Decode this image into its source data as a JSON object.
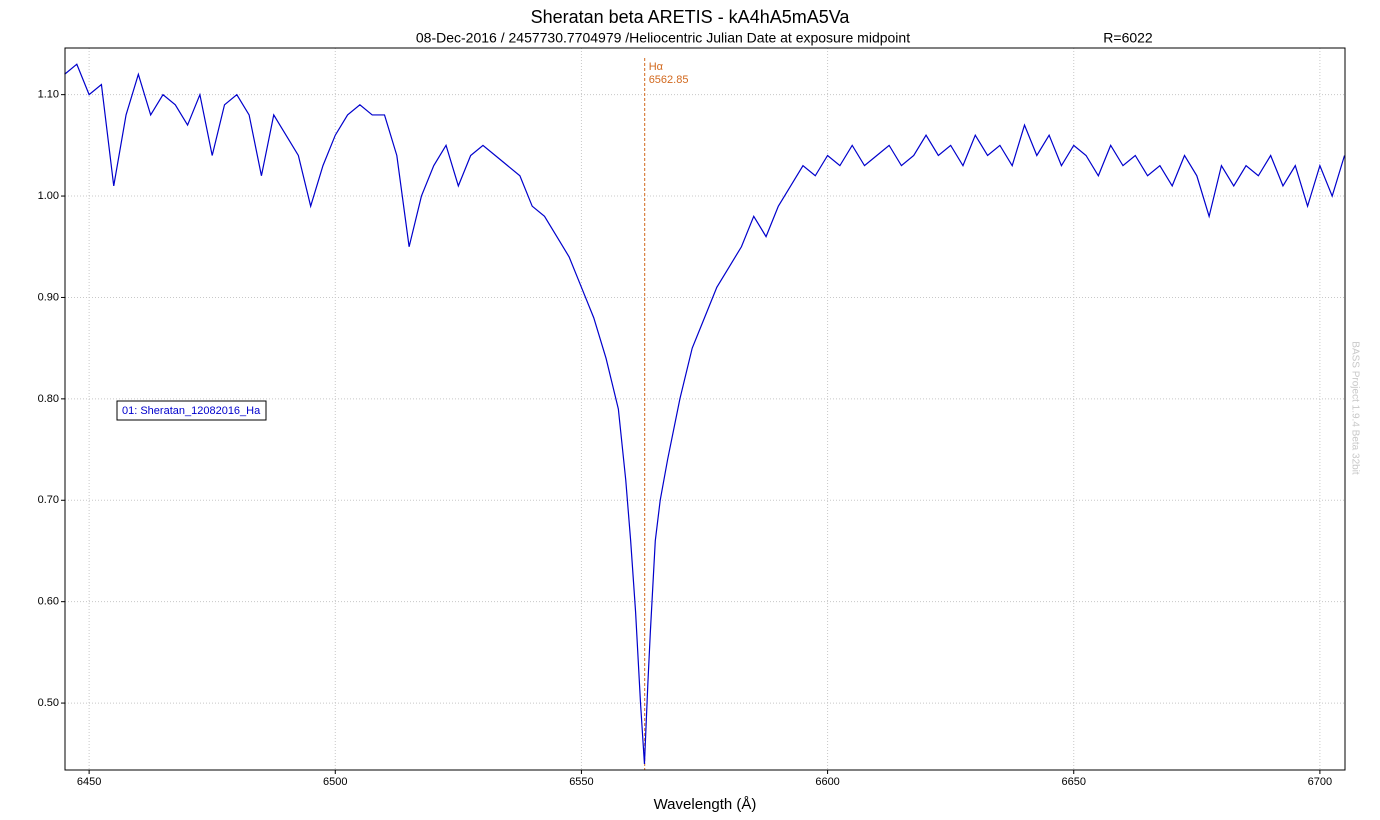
{
  "chart_data": {
    "type": "line",
    "title": "Sheratan beta ARETIS - kA4hA5mA5Va",
    "subtitle": "08-Dec-2016 / 2457730.7704979 /Heliocentric Julian Date at exposure midpoint",
    "resolution_label": "R=6022",
    "xlabel": "Wavelength (Å)",
    "watermark": "BASS Project 1.9.4 Beta 32bit",
    "x": [
      6445,
      6447.5,
      6450,
      6452.5,
      6455,
      6457.5,
      6460,
      6462.5,
      6465,
      6467.5,
      6470,
      6472.5,
      6475,
      6477.5,
      6480,
      6482.5,
      6485,
      6487.5,
      6490,
      6492.5,
      6495,
      6497.5,
      6500,
      6502.5,
      6505,
      6507.5,
      6510,
      6512.5,
      6515,
      6517.5,
      6520,
      6522.5,
      6525,
      6527.5,
      6530,
      6532.5,
      6535,
      6537.5,
      6540,
      6542.5,
      6545,
      6547.5,
      6550,
      6552.5,
      6555,
      6557.5,
      6559,
      6560,
      6561,
      6562,
      6562.8,
      6563.5,
      6564,
      6565,
      6566,
      6567.5,
      6570,
      6572.5,
      6575,
      6577.5,
      6580,
      6582.5,
      6585,
      6587.5,
      6590,
      6592.5,
      6595,
      6597.5,
      6600,
      6602.5,
      6605,
      6607.5,
      6610,
      6612.5,
      6615,
      6617.5,
      6620,
      6622.5,
      6625,
      6627.5,
      6630,
      6632.5,
      6635,
      6637.5,
      6640,
      6642.5,
      6645,
      6647.5,
      6650,
      6652.5,
      6655,
      6657.5,
      6660,
      6662.5,
      6665,
      6667.5,
      6670,
      6672.5,
      6675,
      6677.5,
      6680,
      6682.5,
      6685,
      6687.5,
      6690,
      6692.5,
      6695,
      6697.5,
      6700,
      6702.5,
      6705
    ],
    "series": [
      {
        "name": "01: Sheratan_12082016_Ha",
        "color": "#0000cc",
        "values": [
          1.12,
          1.13,
          1.1,
          1.11,
          1.01,
          1.08,
          1.12,
          1.08,
          1.1,
          1.09,
          1.07,
          1.1,
          1.04,
          1.09,
          1.1,
          1.08,
          1.02,
          1.08,
          1.06,
          1.04,
          0.99,
          1.03,
          1.06,
          1.08,
          1.09,
          1.08,
          1.08,
          1.04,
          0.95,
          1.0,
          1.03,
          1.05,
          1.01,
          1.04,
          1.05,
          1.04,
          1.03,
          1.02,
          0.99,
          0.98,
          0.96,
          0.94,
          0.91,
          0.88,
          0.84,
          0.79,
          0.72,
          0.66,
          0.59,
          0.5,
          0.44,
          0.52,
          0.57,
          0.66,
          0.7,
          0.74,
          0.8,
          0.85,
          0.88,
          0.91,
          0.93,
          0.95,
          0.98,
          0.96,
          0.99,
          1.01,
          1.03,
          1.02,
          1.04,
          1.03,
          1.05,
          1.03,
          1.04,
          1.05,
          1.03,
          1.04,
          1.06,
          1.04,
          1.05,
          1.03,
          1.06,
          1.04,
          1.05,
          1.03,
          1.07,
          1.04,
          1.06,
          1.03,
          1.05,
          1.04,
          1.02,
          1.05,
          1.03,
          1.04,
          1.02,
          1.03,
          1.01,
          1.04,
          1.02,
          0.98,
          1.03,
          1.01,
          1.03,
          1.02,
          1.04,
          1.01,
          1.03,
          0.99,
          1.03,
          1.0,
          1.04
        ]
      }
    ],
    "annotation": {
      "label": "Hα",
      "value": 6562.85,
      "color": "#d2691e"
    },
    "xlim": [
      6445.1,
      6705.1
    ],
    "ylim": [
      0.434,
      1.146
    ],
    "xticks": [
      6450,
      6500,
      6550,
      6600,
      6650,
      6700
    ],
    "yticks": [
      {
        "value": 0.5,
        "label": "0.50"
      },
      {
        "value": 0.6,
        "label": "0.60"
      },
      {
        "value": 0.7,
        "label": "0.70"
      },
      {
        "value": 0.8,
        "label": "0.80"
      },
      {
        "value": 0.9,
        "label": "0.90"
      },
      {
        "value": 1.0,
        "label": "1.00"
      },
      {
        "value": 1.1,
        "label": "1.10"
      }
    ],
    "grid": true
  }
}
